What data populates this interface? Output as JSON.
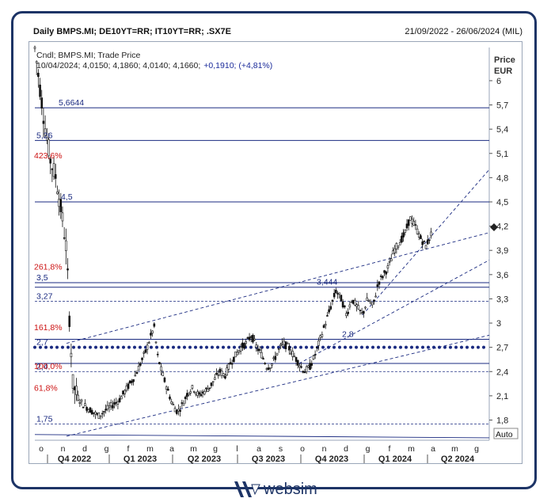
{
  "header": {
    "title": "Daily BMPS.MI; DE10YT=RR; IT10YT=RR; .SX7E",
    "date_range": "21/09/2022 - 26/06/2024 (MIL)"
  },
  "legend": {
    "line1": "Cndl; BMPS.MI; Trade Price",
    "line2_values": "10/04/2024; 4,0150; 4,1860; 4,0140; 4,1660;",
    "line2_change": "+0,1910; (+4,81%)"
  },
  "axis": {
    "title_line1": "Price",
    "title_line2": "EUR",
    "auto_label": "Auto"
  },
  "logo": {
    "text": "websim"
  },
  "chart_data": {
    "type": "candlestick",
    "currency": "EUR",
    "ylim": [
      1.55,
      6.45
    ],
    "y_ticks": [
      {
        "value": 6,
        "label": "6"
      },
      {
        "value": 5.7,
        "label": "5,7"
      },
      {
        "value": 5.4,
        "label": "5,4"
      },
      {
        "value": 5.1,
        "label": "5,1"
      },
      {
        "value": 4.8,
        "label": "4,8"
      },
      {
        "value": 4.5,
        "label": "4,5"
      },
      {
        "value": 4.2,
        "label": "4,2"
      },
      {
        "value": 3.9,
        "label": "3,9"
      },
      {
        "value": 3.6,
        "label": "3,6"
      },
      {
        "value": 3.3,
        "label": "3,3"
      },
      {
        "value": 3,
        "label": "3"
      },
      {
        "value": 2.7,
        "label": "2,7"
      },
      {
        "value": 2.4,
        "label": "2,4"
      },
      {
        "value": 2.1,
        "label": "2,1"
      },
      {
        "value": 1.8,
        "label": "1,8"
      }
    ],
    "month_ticks": [
      "o",
      "n",
      "d",
      "g",
      "f",
      "m",
      "a",
      "m",
      "g",
      "l",
      "a",
      "s",
      "o",
      "n",
      "d",
      "g",
      "f",
      "m",
      "a",
      "m",
      "g"
    ],
    "quarter_labels": [
      "Q4 2022",
      "Q1 2023",
      "Q2 2023",
      "Q3 2023",
      "Q4 2023",
      "Q1 2024",
      "Q2 2024"
    ],
    "horizontal_levels": [
      {
        "value": 5.6644,
        "label": "5,6644",
        "style": "solid",
        "label_color": "#1a2a80"
      },
      {
        "value": 5.26,
        "label": "5,26",
        "style": "solid",
        "label_color": "#1a2a80"
      },
      {
        "value": 4.5,
        "label": "4,5",
        "style": "solid",
        "label_color": "#1a2a80"
      },
      {
        "value": 3.5,
        "label": "3,5",
        "style": "solid",
        "label_color": "#1a2a80"
      },
      {
        "value": 3.444,
        "label": "3,444",
        "style": "solid",
        "label_color": "#1a2a80"
      },
      {
        "value": 3.27,
        "label": "3,27",
        "style": "dashed",
        "label_color": "#1a2a80"
      },
      {
        "value": 2.8,
        "label": "2,8",
        "style": "solid",
        "label_color": "#1a2a80"
      },
      {
        "value": 2.7,
        "label": "2,7",
        "style": "dotted-heavy",
        "label_color": "#1a2a80"
      },
      {
        "value": 2.5,
        "label": "",
        "style": "solid",
        "label_color": "#1a2a80"
      },
      {
        "value": 2.4,
        "label": "2,4",
        "style": "dashed",
        "label_color": "#1a2a80"
      },
      {
        "value": 1.75,
        "label": "1,75",
        "style": "dashed",
        "label_color": "#1a2a80"
      }
    ],
    "fibonacci_labels": [
      {
        "value": 5.08,
        "label": "423,6%"
      },
      {
        "value": 3.7,
        "label": "261,8%"
      },
      {
        "value": 2.95,
        "label": "161,8%"
      },
      {
        "value": 2.47,
        "label": "100,0%"
      },
      {
        "value": 2.2,
        "label": "61,8%"
      }
    ],
    "last_value": 4.166,
    "price_path": [
      [
        0.0,
        6.4
      ],
      [
        0.5,
        5.9
      ],
      [
        1.0,
        5.4
      ],
      [
        1.5,
        5.0
      ],
      [
        2.0,
        4.8
      ],
      [
        2.6,
        4.3
      ],
      [
        3.0,
        3.9
      ],
      [
        3.3,
        3.0
      ],
      [
        3.6,
        2.25
      ],
      [
        4.0,
        2.1
      ],
      [
        4.5,
        2.0
      ],
      [
        5.0,
        1.95
      ],
      [
        5.5,
        1.9
      ],
      [
        6.0,
        1.85
      ],
      [
        6.5,
        1.9
      ],
      [
        7.0,
        1.95
      ],
      [
        7.5,
        2.0
      ],
      [
        8.0,
        2.05
      ],
      [
        8.5,
        2.15
      ],
      [
        9.0,
        2.25
      ],
      [
        9.5,
        2.35
      ],
      [
        10.0,
        2.5
      ],
      [
        10.5,
        2.65
      ],
      [
        11.0,
        2.85
      ],
      [
        11.3,
        2.95
      ],
      [
        11.6,
        2.6
      ],
      [
        12.0,
        2.4
      ],
      [
        12.5,
        2.2
      ],
      [
        13.0,
        2.0
      ],
      [
        13.5,
        1.9
      ],
      [
        14.0,
        2.0
      ],
      [
        14.5,
        2.15
      ],
      [
        15.0,
        2.2
      ],
      [
        15.5,
        2.1
      ],
      [
        16.0,
        2.15
      ],
      [
        16.5,
        2.2
      ],
      [
        17.0,
        2.3
      ],
      [
        17.5,
        2.4
      ],
      [
        18.0,
        2.35
      ],
      [
        18.5,
        2.5
      ],
      [
        19.0,
        2.6
      ],
      [
        19.5,
        2.7
      ],
      [
        20.0,
        2.75
      ],
      [
        20.5,
        2.85
      ],
      [
        21.0,
        2.7
      ],
      [
        21.5,
        2.6
      ],
      [
        22.0,
        2.45
      ],
      [
        22.5,
        2.5
      ],
      [
        23.0,
        2.65
      ],
      [
        23.5,
        2.75
      ],
      [
        24.0,
        2.7
      ],
      [
        24.5,
        2.6
      ],
      [
        25.0,
        2.5
      ],
      [
        25.5,
        2.4
      ],
      [
        26.0,
        2.45
      ],
      [
        26.5,
        2.6
      ],
      [
        27.0,
        2.8
      ],
      [
        27.5,
        3.0
      ],
      [
        28.0,
        3.2
      ],
      [
        28.5,
        3.4
      ],
      [
        29.0,
        3.3
      ],
      [
        29.5,
        3.1
      ],
      [
        30.0,
        3.3
      ],
      [
        30.5,
        3.2
      ],
      [
        31.0,
        3.1
      ],
      [
        31.5,
        3.3
      ],
      [
        32.0,
        3.2
      ],
      [
        32.5,
        3.5
      ],
      [
        33.0,
        3.6
      ],
      [
        33.5,
        3.7
      ],
      [
        34.0,
        3.9
      ],
      [
        34.5,
        4.0
      ],
      [
        35.0,
        4.1
      ],
      [
        35.5,
        4.3
      ],
      [
        36.0,
        4.2
      ],
      [
        36.5,
        4.05
      ],
      [
        37.0,
        3.95
      ],
      [
        37.5,
        4.1
      ]
    ],
    "trendlines": [
      {
        "p1": [
          3.0,
          2.75
        ],
        "p2": [
          43.0,
          4.12
        ],
        "style": "dashed"
      },
      {
        "p1": [
          3.0,
          1.6
        ],
        "p2": [
          43.0,
          2.85
        ],
        "style": "dashed"
      },
      {
        "p1": [
          25.0,
          2.5
        ],
        "p2": [
          43.0,
          3.78
        ],
        "style": "dashed"
      },
      {
        "p1": [
          31.0,
          3.1
        ],
        "p2": [
          43.0,
          4.9
        ],
        "style": "dashed"
      },
      {
        "p1": [
          0.0,
          1.62
        ],
        "p2": [
          43.0,
          1.58
        ],
        "style": "solid"
      }
    ]
  }
}
